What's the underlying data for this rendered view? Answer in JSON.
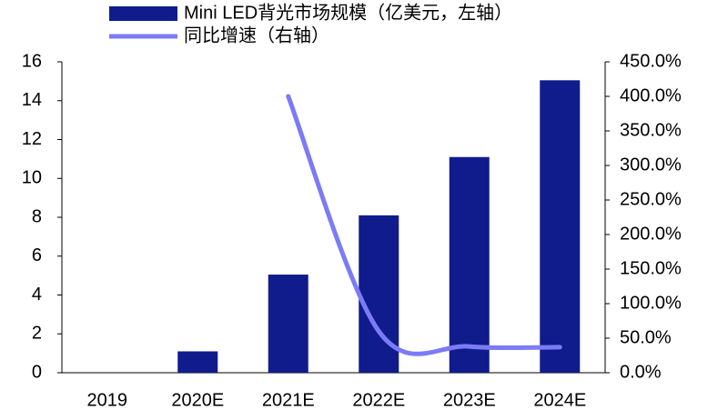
{
  "chart_data": {
    "type": "bar_line",
    "categories": [
      "2019",
      "2020E",
      "2021E",
      "2022E",
      "2023E",
      "2024E"
    ],
    "series": [
      {
        "name": "Mini LED背光市场规模（亿美元，左轴）",
        "color": "#101c8c",
        "type": "bar",
        "values": [
          0,
          1.1,
          5.05,
          8.1,
          11.1,
          15.05
        ]
      },
      {
        "name": "同比增速（右轴）",
        "color": "#7b7bf7",
        "type": "line",
        "axis": "y2",
        "values": [
          null,
          null,
          400,
          60,
          38,
          37
        ]
      }
    ],
    "ylim": [
      0,
      16
    ],
    "yticks": [
      0,
      2,
      4,
      6,
      8,
      10,
      12,
      14,
      16
    ],
    "y2lim": [
      0,
      450
    ],
    "y2ticks": [
      {
        "value": 0,
        "label": "0.0%"
      },
      {
        "value": 50,
        "label": "50.0%"
      },
      {
        "value": 100,
        "label": "100.0%"
      },
      {
        "value": 150,
        "label": "150.0%"
      },
      {
        "value": 200,
        "label": "200.0%"
      },
      {
        "value": 250,
        "label": "250.0%"
      },
      {
        "value": 300,
        "label": "300.0%"
      },
      {
        "value": 350,
        "label": "350.0%"
      },
      {
        "value": 400,
        "label": "400.0%"
      },
      {
        "value": 450,
        "label": "450.0%"
      }
    ],
    "grid": false
  }
}
